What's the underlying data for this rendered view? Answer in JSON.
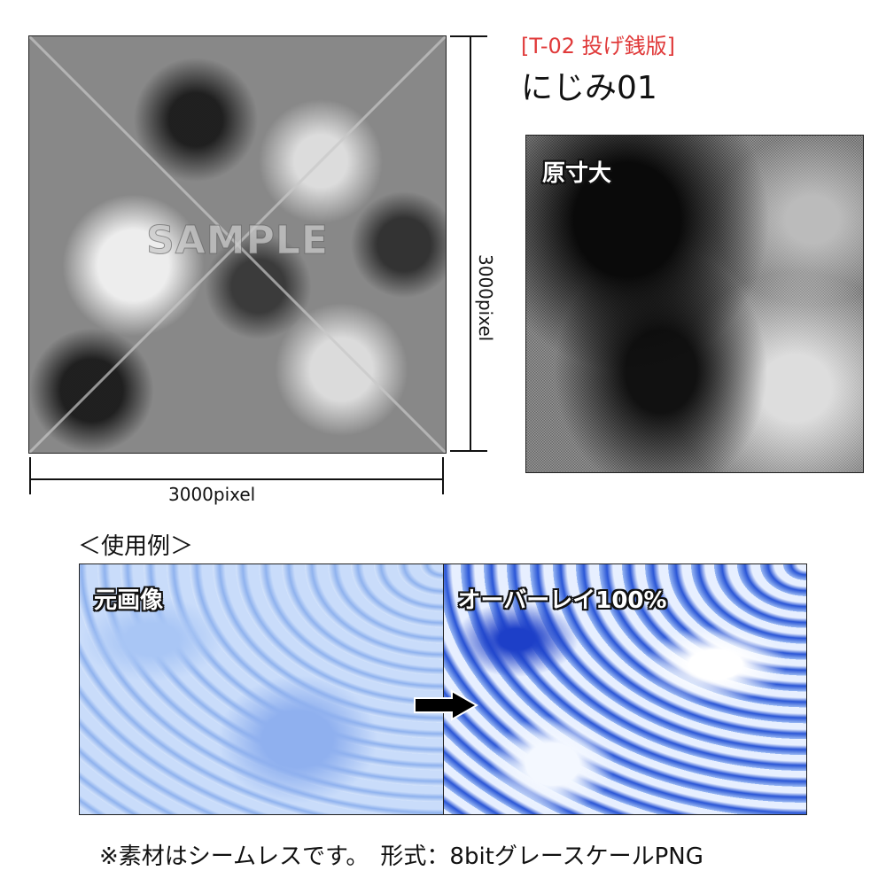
{
  "header": {
    "series": "[T-02  投げ銭版]",
    "title": "にじみ01",
    "accent_color": "#e03a3a"
  },
  "preview": {
    "watermark": "SAMPLE",
    "width_label": "3000pixel",
    "height_label": "3000pixel"
  },
  "actual_size": {
    "label": "原寸大"
  },
  "usage": {
    "heading": "＜使用例＞",
    "before_label": "元画像",
    "after_label": "オーバーレイ100%",
    "arrow_icon": "arrow-right-icon"
  },
  "footer": {
    "note": "※素材はシームレスです。　形式：8bitグレースケールPNG"
  }
}
